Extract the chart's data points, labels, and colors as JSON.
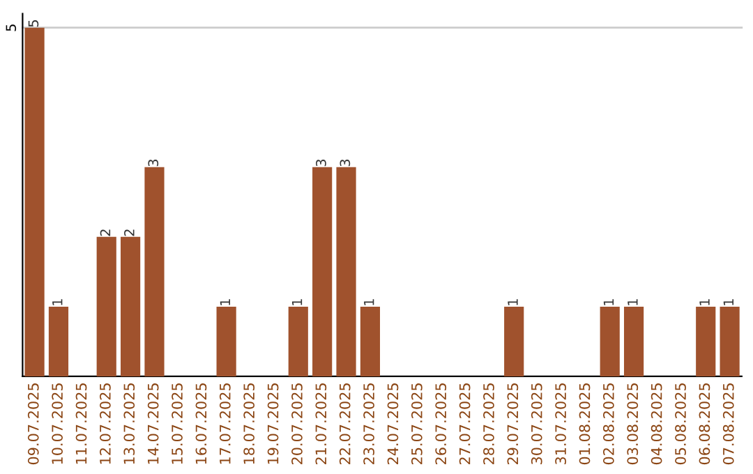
{
  "chart_data": {
    "type": "bar",
    "categories": [
      "09.07.2025",
      "10.07.2025",
      "11.07.2025",
      "12.07.2025",
      "13.07.2025",
      "14.07.2025",
      "15.07.2025",
      "16.07.2025",
      "17.07.2025",
      "18.07.2025",
      "19.07.2025",
      "20.07.2025",
      "21.07.2025",
      "22.07.2025",
      "23.07.2025",
      "24.07.2025",
      "25.07.2025",
      "26.07.2025",
      "27.07.2025",
      "28.07.2025",
      "29.07.2025",
      "30.07.2025",
      "31.07.2025",
      "01.08.2025",
      "02.08.2025",
      "03.08.2025",
      "04.08.2025",
      "05.08.2025",
      "06.08.2025",
      "07.08.2025"
    ],
    "values": [
      5,
      1,
      0,
      2,
      2,
      3,
      0,
      0,
      1,
      0,
      0,
      1,
      3,
      3,
      1,
      0,
      0,
      0,
      0,
      0,
      1,
      0,
      0,
      0,
      1,
      1,
      0,
      0,
      1,
      1
    ],
    "value_labels": [
      "5",
      "1",
      null,
      "2",
      "2",
      "3",
      null,
      null,
      "1",
      null,
      null,
      "1",
      "3",
      "3",
      "1",
      null,
      null,
      null,
      null,
      null,
      "1",
      null,
      null,
      null,
      "1",
      "1",
      null,
      null,
      "1",
      "1"
    ],
    "color": "#a0522d",
    "ylim": [
      0,
      5.2
    ],
    "yticks": [
      5
    ],
    "grid": "y"
  }
}
